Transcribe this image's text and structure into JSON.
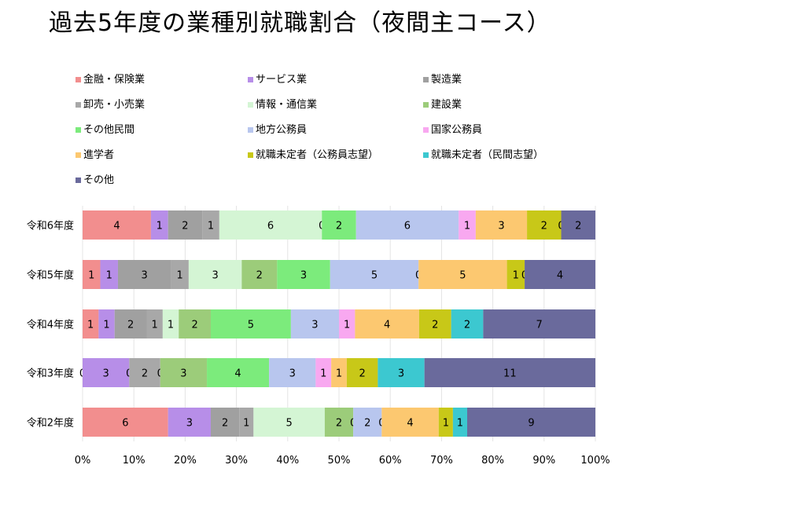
{
  "chart_data": {
    "type": "bar",
    "orientation": "horizontal",
    "stacked": "percent",
    "title": "過去5年度の業種別就職割合（夜間主コース）",
    "categories": [
      "令和6年度",
      "令和5年度",
      "令和4年度",
      "令和3年度",
      "令和2年度"
    ],
    "x_ticks": [
      "0%",
      "10%",
      "20%",
      "30%",
      "40%",
      "50%",
      "60%",
      "70%",
      "80%",
      "90%",
      "100%"
    ],
    "xlim": [
      0,
      100
    ],
    "legend_position": "top",
    "series": [
      {
        "name": "金融・保険業",
        "color": "#f28e8e",
        "values": [
          4,
          1,
          1,
          0,
          6
        ]
      },
      {
        "name": "サービス業",
        "color": "#b78ee8",
        "values": [
          1,
          1,
          1,
          3,
          3
        ]
      },
      {
        "name": "製造業",
        "color": "#a0a0a0",
        "values": [
          2,
          3,
          2,
          0,
          2
        ]
      },
      {
        "name": "卸売・小売業",
        "color": "#a8a8a8",
        "values": [
          1,
          1,
          1,
          2,
          1
        ]
      },
      {
        "name": "情報・通信業",
        "color": "#d4f5d4",
        "values": [
          6,
          3,
          1,
          0,
          5
        ]
      },
      {
        "name": "建設業",
        "color": "#9ccc7a",
        "values": [
          0,
          2,
          2,
          3,
          2
        ]
      },
      {
        "name": "その他民間",
        "color": "#7ceb7c",
        "values": [
          2,
          3,
          5,
          4,
          0
        ]
      },
      {
        "name": "地方公務員",
        "color": "#b8c6ee",
        "values": [
          6,
          5,
          3,
          3,
          2
        ]
      },
      {
        "name": "国家公務員",
        "color": "#f8a8f0",
        "values": [
          1,
          0,
          1,
          1,
          0
        ]
      },
      {
        "name": "進学者",
        "color": "#fcc870",
        "values": [
          3,
          5,
          4,
          1,
          4
        ]
      },
      {
        "name": "就職未定者（公務員志望）",
        "color": "#c8c818",
        "values": [
          2,
          1,
          2,
          2,
          1
        ]
      },
      {
        "name": "就職未定者（民間志望）",
        "color": "#3cc8d0",
        "values": [
          0,
          0,
          2,
          3,
          1
        ]
      },
      {
        "name": "その他",
        "color": "#6a6a9c",
        "values": [
          2,
          4,
          7,
          11,
          9
        ]
      }
    ]
  }
}
